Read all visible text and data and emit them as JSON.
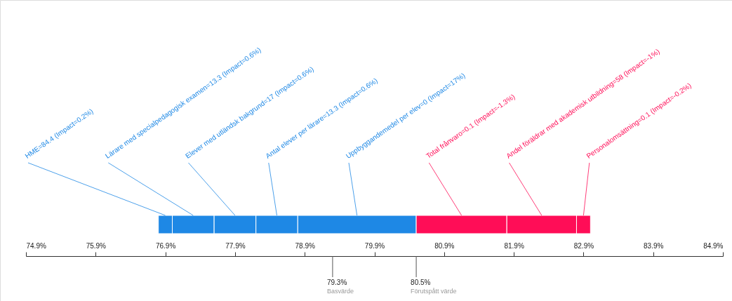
{
  "chart_data": {
    "type": "bar",
    "orientation": "horizontal",
    "categories": [
      null
    ],
    "xlim": [
      74.9,
      84.9
    ],
    "xticks": [
      {
        "value": 74.9,
        "label": "74.9%"
      },
      {
        "value": 75.9,
        "label": "75.9%"
      },
      {
        "value": 76.9,
        "label": "76.9%"
      },
      {
        "value": 77.9,
        "label": "77.9%"
      },
      {
        "value": 78.9,
        "label": "78.9%"
      },
      {
        "value": 79.9,
        "label": "79.9%"
      },
      {
        "value": 80.9,
        "label": "80.9%"
      },
      {
        "value": 81.9,
        "label": "81.9%"
      },
      {
        "value": 82.9,
        "label": "82.9%"
      },
      {
        "value": 83.9,
        "label": "83.9%"
      },
      {
        "value": 84.9,
        "label": "84.9%"
      }
    ],
    "series": [
      {
        "name": "HME=84.4 (Impact=0.2%)",
        "color": "#1e88e5",
        "values": [
          0.2
        ],
        "base": [
          76.8
        ]
      },
      {
        "name": "Lärare med specialpedagogisk examen=13.3 (Impact=0.6%)",
        "color": "#1e88e5",
        "values": [
          0.6
        ],
        "base": [
          77.0
        ]
      },
      {
        "name": "Elever med utländsk bakgrund=17 (Impact=0.6%)",
        "color": "#1e88e5",
        "values": [
          0.6
        ],
        "base": [
          77.6
        ]
      },
      {
        "name": "Antal elever per lärare=13.3 (Impact=0.6%)",
        "color": "#1e88e5",
        "values": [
          0.6
        ],
        "base": [
          78.2
        ]
      },
      {
        "name": "Uppbyggandemedel per elev=0 (Impact=17%)",
        "color": "#1e88e5",
        "values": [
          1.7
        ],
        "base": [
          78.8
        ]
      },
      {
        "name": "Total frånvaro=0.1 (Impact=-1.3%)",
        "color": "#ff0d57",
        "values": [
          1.3
        ],
        "base": [
          80.5
        ]
      },
      {
        "name": "Andel föräldrar med akademisk utbildning=58 (Impact=-1%)",
        "color": "#ff0d57",
        "values": [
          1.0
        ],
        "base": [
          81.8
        ]
      },
      {
        "name": "Personalomsättning=0.1 (Impact=-0.2%)",
        "color": "#ff0d57",
        "values": [
          0.2
        ],
        "base": [
          82.8
        ]
      }
    ],
    "ref_lines": [
      {
        "axis": "x",
        "value": 79.3,
        "label": "Basvärde",
        "color": "#555555"
      },
      {
        "axis": "x",
        "value": 80.5,
        "label": "Förutspått värde",
        "color": "#555555"
      }
    ],
    "annotations": [
      "79.3%",
      "80.5%"
    ],
    "grid": false
  }
}
